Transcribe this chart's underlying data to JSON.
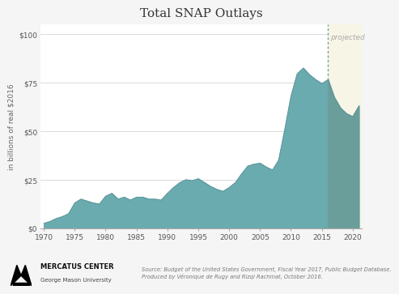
{
  "title": "Total SNAP Outlays",
  "ylabel": "in billions of real $2016",
  "xlim": [
    1969.5,
    2021.5
  ],
  "ylim": [
    0,
    105
  ],
  "yticks": [
    0,
    25,
    50,
    75,
    100
  ],
  "ytick_labels": [
    "$0",
    "$25",
    "$50",
    "$75",
    "$100"
  ],
  "xticks": [
    1970,
    1975,
    1980,
    1985,
    1990,
    1995,
    2000,
    2005,
    2010,
    2015,
    2020
  ],
  "projection_start": 2016,
  "dashed_line_color": "#7a9a9a",
  "fill_color_actual": "#6aabaf",
  "fill_color_projected": "#6a9e9a",
  "projected_bg_color": "#f7f5e6",
  "projected_label": "projected",
  "source_text": "Source: Budget of the United States Government, Fiscal Year 2017, Public Budget Database.\nProduced by Véronique de Rugy and Rizqi Rachmat, October 2016.",
  "title_fontsize": 11,
  "axis_fontsize": 6.5,
  "ylabel_fontsize": 6.5,
  "label_fontsize": 6.5,
  "plot_bg_color": "#ffffff",
  "fig_bg_color": "#f5f5f5",
  "years": [
    1970,
    1971,
    1972,
    1973,
    1974,
    1975,
    1976,
    1977,
    1978,
    1979,
    1980,
    1981,
    1982,
    1983,
    1984,
    1985,
    1986,
    1987,
    1988,
    1989,
    1990,
    1991,
    1992,
    1993,
    1994,
    1995,
    1996,
    1997,
    1998,
    1999,
    2000,
    2001,
    2002,
    2003,
    2004,
    2005,
    2006,
    2007,
    2008,
    2009,
    2010,
    2011,
    2012,
    2013,
    2014,
    2015,
    2016,
    2017,
    2018,
    2019,
    2020,
    2021
  ],
  "values": [
    2.5,
    3.5,
    5.0,
    6.0,
    7.5,
    13.0,
    15.0,
    14.0,
    13.0,
    12.5,
    16.5,
    18.0,
    15.0,
    16.0,
    14.5,
    16.0,
    16.0,
    15.0,
    15.0,
    14.5,
    18.0,
    21.0,
    23.5,
    25.0,
    24.5,
    25.5,
    23.5,
    21.5,
    20.0,
    19.0,
    21.0,
    23.5,
    28.0,
    32.0,
    33.0,
    33.5,
    31.5,
    30.0,
    35.0,
    51.0,
    68.0,
    79.5,
    82.5,
    79.0,
    76.5,
    74.5,
    76.5,
    67.5,
    62.0,
    59.0,
    57.5,
    63.0
  ]
}
